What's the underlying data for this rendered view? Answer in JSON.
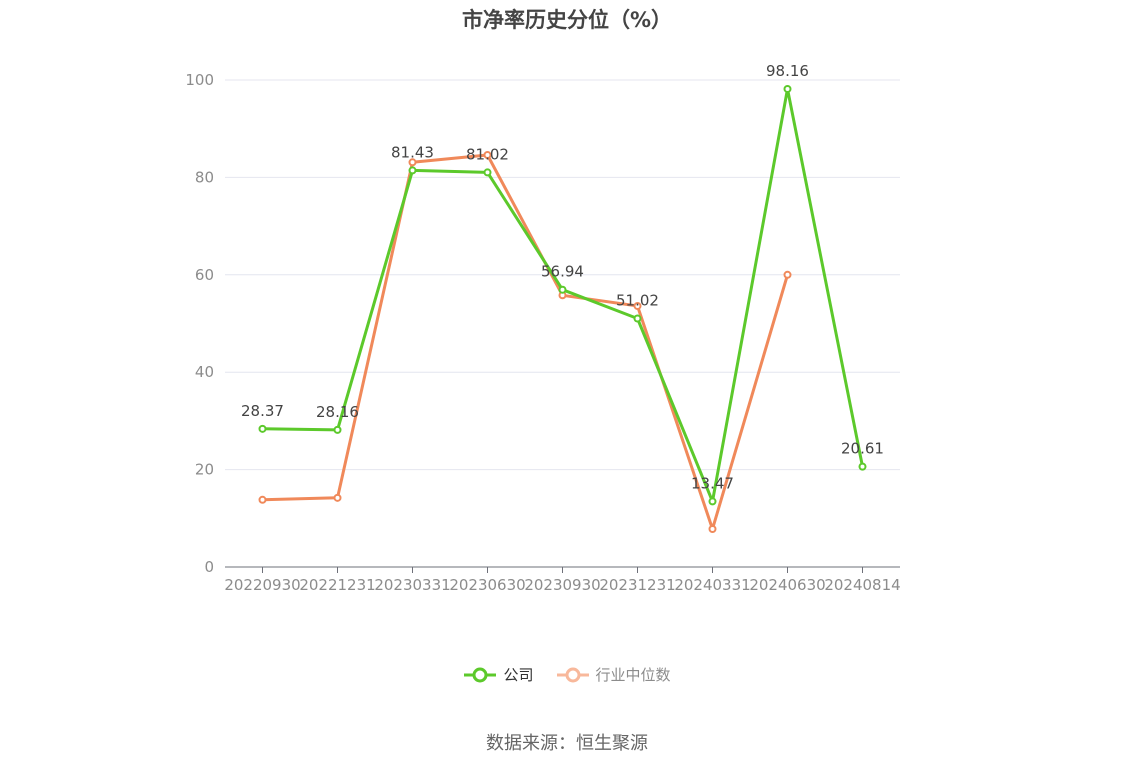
{
  "chart_data": {
    "type": "line",
    "title": "市净率历史分位（%）",
    "categories": [
      "20220930",
      "20221231",
      "20230331",
      "20230630",
      "20230930",
      "20231231",
      "20240331",
      "20240630",
      "20240814"
    ],
    "ylim": [
      0,
      100
    ],
    "yticks": [
      0,
      20,
      40,
      60,
      80,
      100
    ],
    "grid": true,
    "legend_position": "bottom",
    "series": [
      {
        "name": "公司",
        "color": "#5cc92b",
        "values": [
          28.37,
          28.16,
          81.43,
          81.02,
          56.94,
          51.02,
          13.47,
          98.16,
          20.61
        ],
        "labels": [
          "28.37",
          "28.16",
          "81.43",
          "81.02",
          "56.94",
          "51.02",
          "13.47",
          "98.16",
          "20.61"
        ]
      },
      {
        "name": "行业中位数",
        "color": "#f0895a",
        "values": [
          13.8,
          14.2,
          83.1,
          84.6,
          55.8,
          53.6,
          7.8,
          60.0,
          null
        ]
      }
    ]
  },
  "legend": {
    "company": "公司",
    "industry": "行业中位数",
    "company_color": "#5cc92b",
    "industry_color": "#f8b89b"
  },
  "source_text": "数据来源：恒生聚源"
}
